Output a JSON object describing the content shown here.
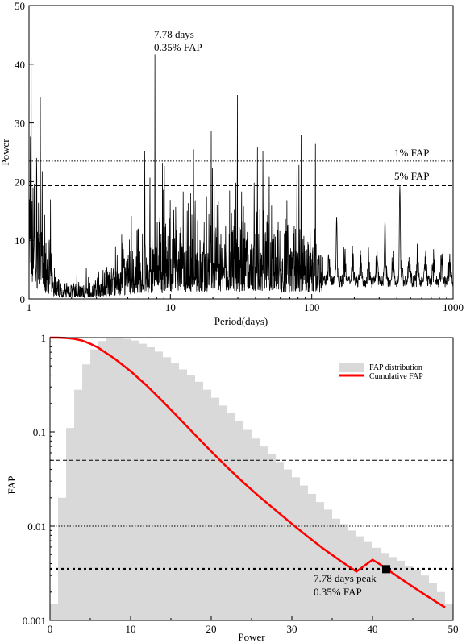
{
  "chart_data": [
    {
      "type": "line",
      "xlabel": "Period(days)",
      "ylabel": "Power",
      "xscale": "log",
      "xlim": [
        1,
        1000
      ],
      "ylim": [
        0,
        50
      ],
      "xticks": [
        1,
        10,
        100,
        1000
      ],
      "xtick_labels": [
        "1",
        "10",
        "100",
        "1000"
      ],
      "yticks": [
        0,
        10,
        20,
        30,
        40,
        50
      ],
      "ytick_labels": [
        "0",
        "10",
        "20",
        "30",
        "40",
        "50"
      ],
      "peak": {
        "period": 7.78,
        "power": 41.7
      },
      "peak_label": [
        "7.78 days",
        "0.35% FAP"
      ],
      "reference_lines": [
        {
          "label": "1% FAP",
          "y": 23.5,
          "style": "dotted"
        },
        {
          "label": "5% FAP",
          "y": 19.3,
          "style": "dashed"
        }
      ],
      "notable_peaks": [
        {
          "period": 8.8,
          "power": 23.2
        },
        {
          "period": 50,
          "power": 20.8
        },
        {
          "period": 420,
          "power": 19.2
        },
        {
          "period": 330,
          "power": 13.5
        },
        {
          "period": 150,
          "power": 14.0
        },
        {
          "period": 29,
          "power": 19.8
        },
        {
          "period": 18,
          "power": 17.5
        }
      ],
      "grid": false
    },
    {
      "type": "bar",
      "xlabel": "Power",
      "ylabel": "FAP",
      "yscale": "log",
      "xlim": [
        0,
        50
      ],
      "ylim": [
        0.001,
        1
      ],
      "xticks": [
        0,
        10,
        20,
        30,
        40,
        50
      ],
      "xtick_labels": [
        "0",
        "10",
        "20",
        "30",
        "40",
        "50"
      ],
      "yticks": [
        0.001,
        0.01,
        0.1,
        1
      ],
      "ytick_labels": [
        "0.001",
        "0.01",
        "0.1",
        "1"
      ],
      "bin_width": 1,
      "histogram": {
        "name": "FAP distribution",
        "color": "#d9d9d9",
        "bins_start": [
          0,
          1,
          2,
          3,
          4,
          5,
          6,
          7,
          8,
          9,
          10,
          11,
          12,
          13,
          14,
          15,
          16,
          17,
          18,
          19,
          20,
          21,
          22,
          23,
          24,
          25,
          26,
          27,
          28,
          29,
          30,
          31,
          32,
          33,
          34,
          35,
          36,
          37,
          38,
          39,
          40,
          41,
          42,
          43,
          44,
          45,
          46,
          47,
          48,
          49
        ],
        "values": [
          0.0015,
          0.02,
          0.11,
          0.28,
          0.52,
          0.75,
          0.92,
          0.99,
          1.0,
          0.97,
          0.93,
          0.86,
          0.79,
          0.71,
          0.62,
          0.54,
          0.46,
          0.4,
          0.34,
          0.28,
          0.23,
          0.19,
          0.16,
          0.13,
          0.105,
          0.085,
          0.07,
          0.058,
          0.048,
          0.04,
          0.033,
          0.027,
          0.022,
          0.018,
          0.015,
          0.012,
          0.0105,
          0.009,
          0.0078,
          0.0068,
          0.0059,
          0.0052,
          0.0047,
          0.0043,
          0.0038,
          0.0034,
          0.003,
          0.0025,
          0.002,
          0.0015
        ]
      },
      "series": [
        {
          "name": "Cumulative FAP",
          "color": "#ff0000",
          "x": [
            0,
            1,
            2,
            3,
            4,
            5,
            6,
            8,
            10,
            12,
            14,
            16,
            18,
            20,
            22,
            24,
            26,
            28,
            30,
            32,
            34,
            36,
            38,
            40,
            41,
            42,
            44,
            46,
            48,
            49
          ],
          "values": [
            1.0,
            1.0,
            0.99,
            0.97,
            0.93,
            0.86,
            0.78,
            0.6,
            0.44,
            0.31,
            0.21,
            0.14,
            0.093,
            0.062,
            0.042,
            0.029,
            0.0205,
            0.0147,
            0.0106,
            0.0077,
            0.0057,
            0.0043,
            0.0033,
            0.0044,
            0.0039,
            0.0034,
            0.0026,
            0.002,
            0.00155,
            0.00138
          ]
        }
      ],
      "reference_lines": [
        {
          "y": 0.05,
          "style": "dashed"
        },
        {
          "y": 0.01,
          "style": "dotted"
        },
        {
          "y": 0.0035,
          "style": "dotted-bold"
        }
      ],
      "marker": {
        "x": 41.7,
        "y": 0.0035
      },
      "marker_label": [
        "7.78 days peak",
        "0.35% FAP"
      ],
      "legend": {
        "placement": "top-right"
      },
      "grid": false
    }
  ]
}
